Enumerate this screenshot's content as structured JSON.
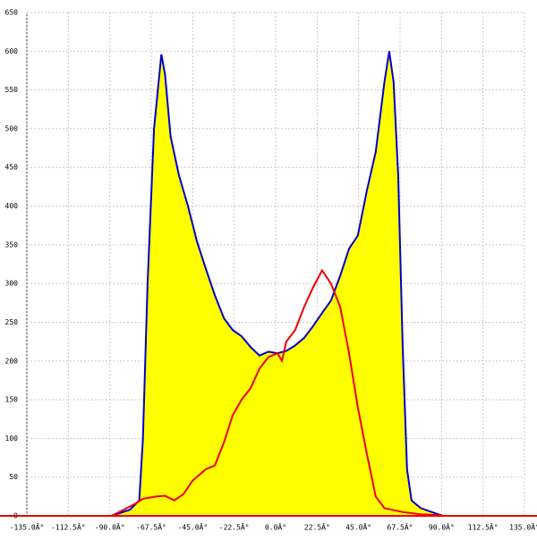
{
  "chart_data": {
    "type": "area-line",
    "xlim": [
      -135,
      135
    ],
    "ylim": [
      0,
      650
    ],
    "xticks": [
      {
        "value": -135,
        "label": "-135.0Â°"
      },
      {
        "value": -112.5,
        "label": "-112.5Â°"
      },
      {
        "value": -90,
        "label": "-90.0Â°"
      },
      {
        "value": -67.5,
        "label": "-67.5Â°"
      },
      {
        "value": -45,
        "label": "-45.0Â°"
      },
      {
        "value": -22.5,
        "label": "-22.5Â°"
      },
      {
        "value": 0,
        "label": "0.0Â°"
      },
      {
        "value": 22.5,
        "label": "22.5Â°"
      },
      {
        "value": 45,
        "label": "45.0Â°"
      },
      {
        "value": 67.5,
        "label": "67.5Â°"
      },
      {
        "value": 90,
        "label": "90.0Â°"
      },
      {
        "value": 112.5,
        "label": "112.5Â°"
      },
      {
        "value": 135,
        "label": "135.0Â°"
      }
    ],
    "yticks": [
      0,
      50,
      100,
      150,
      200,
      250,
      300,
      350,
      400,
      450,
      500,
      550,
      600,
      650
    ],
    "grid": true,
    "series": [
      {
        "color": "#0000cc",
        "fill": "#ffff00",
        "x": [
          -89,
          -79,
          -74,
          -72,
          -69.5,
          -66,
          -62,
          -60,
          -57,
          -52.5,
          -47.6,
          -42.8,
          -38,
          -33,
          -28,
          -23.3,
          -18.5,
          -13.6,
          -8.8,
          -4,
          1,
          5.8,
          10.6,
          15.5,
          20.3,
          25.2,
          30,
          35,
          39.8,
          44.6,
          49.5,
          54.3,
          59,
          61.6,
          64,
          66.5,
          68.9,
          71.3,
          73.7,
          78.6,
          88.3,
          90.7
        ],
        "values": [
          0,
          8,
          20,
          100,
          300,
          500,
          596,
          570,
          490,
          440,
          400,
          355,
          320,
          285,
          255,
          240,
          232,
          218,
          207,
          212,
          210,
          213,
          220,
          230,
          245,
          262,
          278,
          310,
          345,
          362,
          420,
          470,
          560,
          600,
          560,
          440,
          220,
          60,
          20,
          10,
          2,
          0
        ]
      },
      {
        "color": "#ee0000",
        "x": [
          -89,
          -76.7,
          -72,
          -64.6,
          -60,
          -55,
          -50,
          -45.2,
          -38,
          -33,
          -28,
          -23.3,
          -18.5,
          -13.6,
          -8.8,
          -4,
          1,
          3.4,
          5.8,
          10.6,
          15.5,
          20.3,
          25.2,
          30,
          35,
          39.8,
          44.6,
          49.5,
          54.3,
          59,
          68.9,
          78.6,
          88.3,
          90.7
        ],
        "values": [
          0,
          15,
          22,
          25,
          26,
          20,
          28,
          45,
          60,
          65,
          95,
          130,
          150,
          165,
          190,
          205,
          210,
          200,
          225,
          240,
          270,
          295,
          317,
          300,
          270,
          210,
          140,
          80,
          25,
          10,
          5,
          2,
          1,
          0
        ]
      }
    ]
  }
}
